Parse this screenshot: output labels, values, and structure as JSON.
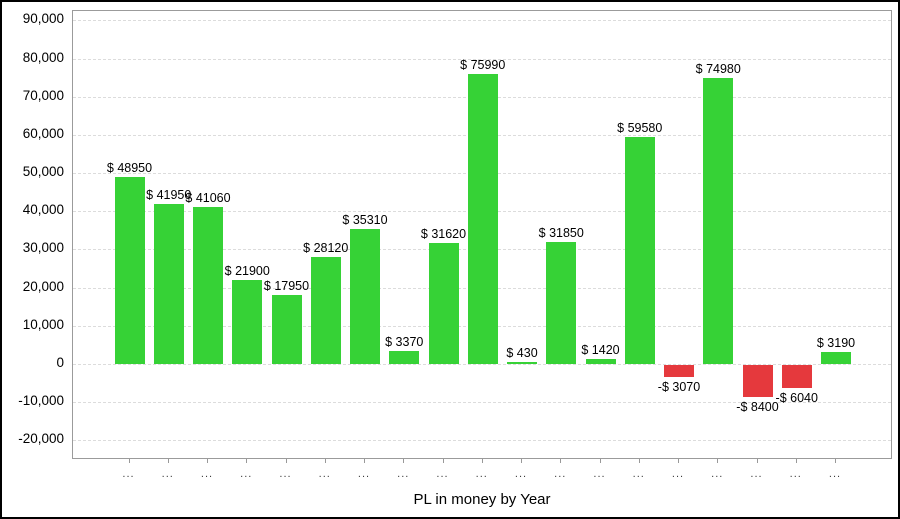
{
  "chart_data": {
    "type": "bar",
    "title": "PL in money by Year",
    "title_position": "bottom",
    "ylabel": "",
    "ylim": [
      -25000,
      92500
    ],
    "grid": "horizontal-dashed",
    "legend": "none",
    "categories": [
      "...",
      "...",
      "...",
      "...",
      "...",
      "...",
      "...",
      "...",
      "...",
      "...",
      "...",
      "...",
      "...",
      "...",
      "...",
      "...",
      "...",
      "...",
      "..."
    ],
    "values": [
      48950,
      41950,
      41060,
      21900,
      17950,
      28120,
      35310,
      3370,
      31620,
      75990,
      430,
      31850,
      1420,
      59580,
      -3070,
      74980,
      -8400,
      -6040,
      3190
    ],
    "bar_labels": [
      "$ 48950",
      "$ 41950",
      "$ 41060",
      "$ 21900",
      "$ 17950",
      "$ 28120",
      "$ 35310",
      "$ 3370",
      "$ 31620",
      "$ 75990",
      "$ 430",
      "$ 31850",
      "$ 1420",
      "$ 59580",
      "-$ 3070",
      "$ 74980",
      "-$ 8400",
      "-$ 6040",
      "$ 3190"
    ],
    "y_ticks": [
      90000,
      80000,
      70000,
      60000,
      50000,
      40000,
      30000,
      20000,
      10000,
      0,
      -10000,
      -20000
    ],
    "y_tick_labels": [
      "90,000",
      "80,000",
      "70,000",
      "60,000",
      "50,000",
      "40,000",
      "30,000",
      "20,000",
      "10,000",
      "0",
      "-10,000",
      "-20,000"
    ],
    "colors": {
      "positive_bar": "#36d236",
      "negative_bar": "#e5393d",
      "gridline": "#dcdcdc",
      "plot_border": "#9b9b9b",
      "frame_border": "#000000",
      "text": "#000000"
    }
  }
}
